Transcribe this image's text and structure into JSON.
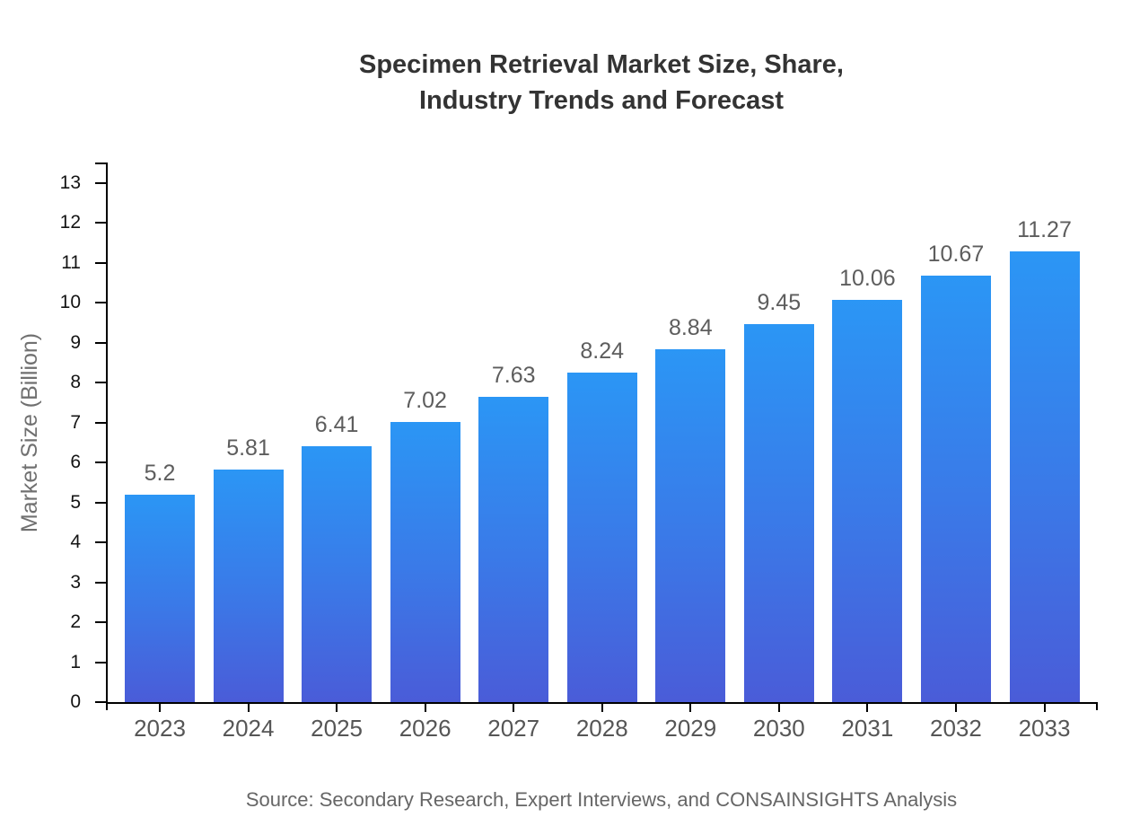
{
  "title": {
    "line1": "Specimen Retrieval Market Size, Share,",
    "line2": "Industry Trends and Forecast"
  },
  "source_note": "Source: Secondary Research, Expert Interviews, and CONSAINSIGHTS Analysis",
  "chart_data": {
    "type": "bar",
    "title": "Specimen Retrieval Market Size, Share, Industry Trends and Forecast",
    "categories": [
      "2023",
      "2024",
      "2025",
      "2026",
      "2027",
      "2028",
      "2029",
      "2030",
      "2031",
      "2032",
      "2033"
    ],
    "values": [
      5.2,
      5.81,
      6.41,
      7.02,
      7.63,
      8.24,
      8.84,
      9.45,
      10.06,
      10.67,
      11.27
    ],
    "value_labels": [
      "5.2",
      "5.81",
      "6.41",
      "7.02",
      "7.63",
      "8.24",
      "8.84",
      "9.45",
      "10.06",
      "10.67",
      "11.27"
    ],
    "xlabel": "",
    "ylabel": "Market Size (Billion)",
    "ylim": [
      0,
      13
    ],
    "yticks": [
      0,
      1,
      2,
      3,
      4,
      5,
      6,
      7,
      8,
      9,
      10,
      11,
      12,
      13
    ],
    "grid": false,
    "legend": null,
    "colors": {
      "bar_gradient_top": "#2B96F5",
      "bar_gradient_bottom": "#4A5CD8",
      "axis": "#000000",
      "title_text": "#333333",
      "y_tick_text": "#141414",
      "x_tick_text": "#565656",
      "value_label_text": "#5d5d5d",
      "y_axis_title_text": "#707070",
      "source_text": "#666666",
      "background": "#ffffff"
    }
  }
}
